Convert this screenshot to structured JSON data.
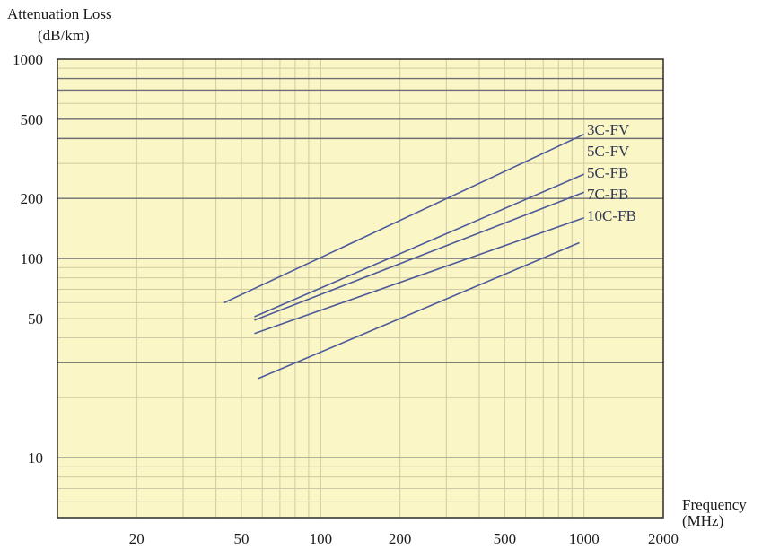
{
  "chart_data": {
    "type": "line",
    "ylabel": [
      "Attenuation Loss",
      "(dB/km)"
    ],
    "xlabel": [
      "Frequency",
      "(MHz)"
    ],
    "x_scale": "log",
    "y_scale": "log",
    "xlim": [
      10,
      2000
    ],
    "ylim": [
      5,
      1000
    ],
    "x_ticks": [
      20,
      50,
      100,
      200,
      500,
      1000,
      2000
    ],
    "y_ticks": [
      1000,
      500,
      200,
      100,
      50,
      10
    ],
    "grid": true,
    "series": [
      {
        "name": "3C-FV",
        "points": [
          [
            43,
            60
          ],
          [
            1000,
            420
          ]
        ]
      },
      {
        "name": "5C-FV",
        "points": [
          [
            56,
            51
          ],
          [
            1000,
            265
          ]
        ]
      },
      {
        "name": "5C-FB",
        "points": [
          [
            56,
            49
          ],
          [
            1000,
            215
          ]
        ]
      },
      {
        "name": "7C-FB",
        "points": [
          [
            56,
            42
          ],
          [
            1000,
            160
          ]
        ]
      },
      {
        "name": "10C-FB",
        "points": [
          [
            58,
            25
          ],
          [
            960,
            120
          ]
        ]
      }
    ]
  },
  "colors": {
    "plot_background": "#fbf6c5",
    "major_grid": "#6f6e74",
    "minor_grid": "#cfcaa3",
    "series_line": "#4d5b9a",
    "frame": "#2a2a2a"
  }
}
